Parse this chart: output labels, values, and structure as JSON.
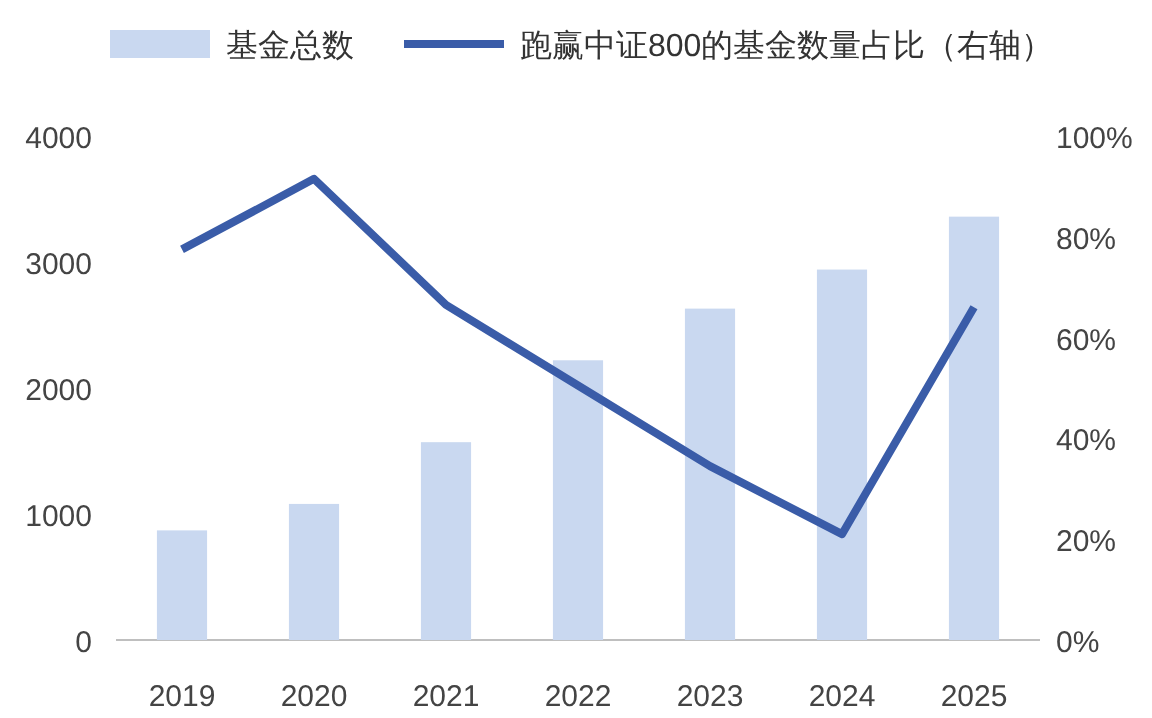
{
  "chart_data": {
    "type": "bar",
    "categories": [
      "2019",
      "2020",
      "2021",
      "2022",
      "2023",
      "2024",
      "2025"
    ],
    "series": [
      {
        "name": "基金总数",
        "color": "#c9d8f0",
        "values": [
          870,
          1080,
          1570,
          2220,
          2630,
          2940,
          3360
        ]
      },
      {
        "name": "跑赢中证800的基金数量占比（右轴）",
        "type": "line",
        "axis": "y2",
        "color": "#3a5ca8",
        "values": [
          77.5,
          91.5,
          66.5,
          50.5,
          34.5,
          21,
          66
        ]
      }
    ],
    "ylim": [
      0,
      4000
    ],
    "yticks": [
      0,
      1000,
      2000,
      3000,
      4000
    ],
    "y2lim": [
      0,
      100
    ],
    "y2ticks": [
      {
        "value": 0,
        "label": "0%"
      },
      {
        "value": 20,
        "label": "20%"
      },
      {
        "value": 40,
        "label": "40%"
      },
      {
        "value": 60,
        "label": "60%"
      },
      {
        "value": 80,
        "label": "80%"
      },
      {
        "value": 100,
        "label": "100%"
      }
    ],
    "legend": "top"
  }
}
